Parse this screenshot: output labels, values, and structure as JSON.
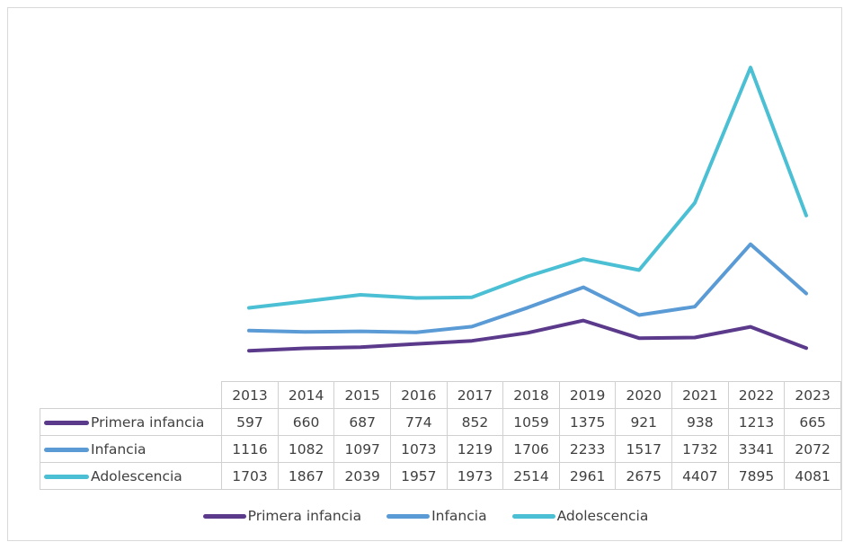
{
  "chart_data": {
    "type": "line",
    "title": "",
    "xlabel": "",
    "ylabel": "",
    "categories": [
      "2013",
      "2014",
      "2015",
      "2016",
      "2017",
      "2018",
      "2019",
      "2020",
      "2021",
      "2022",
      "2023"
    ],
    "ylim": [
      0,
      8500
    ],
    "grid": false,
    "legend": "bottom",
    "data_table": true,
    "series": [
      {
        "name": "Primera infancia",
        "color": "#5b3a8c",
        "values": [
          597,
          660,
          687,
          774,
          852,
          1059,
          1375,
          921,
          938,
          1213,
          665
        ]
      },
      {
        "name": "Infancia",
        "color": "#5b9bd5",
        "values": [
          1116,
          1082,
          1097,
          1073,
          1219,
          1706,
          2233,
          1517,
          1732,
          3341,
          2072
        ]
      },
      {
        "name": "Adolescencia",
        "color": "#4bbfd3",
        "values": [
          1703,
          1867,
          2039,
          1957,
          1973,
          2514,
          2961,
          2675,
          4407,
          7895,
          4081
        ]
      }
    ]
  }
}
